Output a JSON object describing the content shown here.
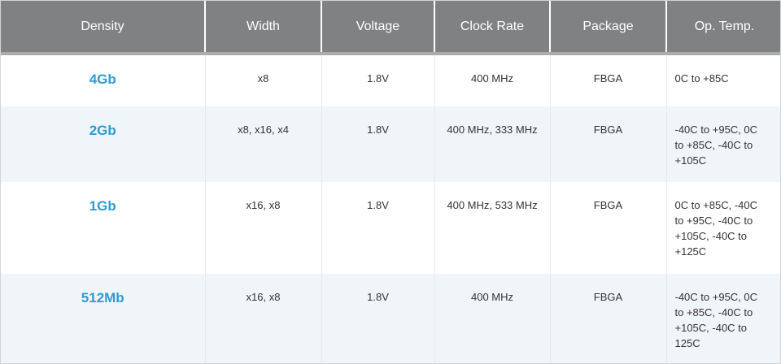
{
  "colors": {
    "header_bg": "#7f8183",
    "header_strip": "#a9abad",
    "header_text": "#ffffff",
    "link_blue": "#2e9bd5",
    "alt_row_bg": "#f0f5fa",
    "body_text": "#333333",
    "outer_border": "#d3d5d7"
  },
  "table": {
    "headers": [
      "Density",
      "Width",
      "Voltage",
      "Clock Rate",
      "Package",
      "Op. Temp."
    ],
    "rows": [
      {
        "density": "4Gb",
        "width": "x8",
        "voltage": "1.8V",
        "clock_rate": "400 MHz",
        "package": "FBGA",
        "op_temp": "0C to +85C"
      },
      {
        "density": "2Gb",
        "width": "x8, x16, x4",
        "voltage": "1.8V",
        "clock_rate": "400 MHz, 333 MHz",
        "package": "FBGA",
        "op_temp": "-40C to +95C, 0C to +85C, -40C to +105C"
      },
      {
        "density": "1Gb",
        "width": "x16, x8",
        "voltage": "1.8V",
        "clock_rate": "400 MHz, 533 MHz",
        "package": "FBGA",
        "op_temp": "0C to +85C, -40C to +95C, -40C to +105C, -40C to +125C"
      },
      {
        "density": "512Mb",
        "width": "x16, x8",
        "voltage": "1.8V",
        "clock_rate": "400 MHz",
        "package": "FBGA",
        "op_temp": "-40C to +95C, 0C to +85C, -40C to +105C, -40C to 125C"
      }
    ]
  }
}
